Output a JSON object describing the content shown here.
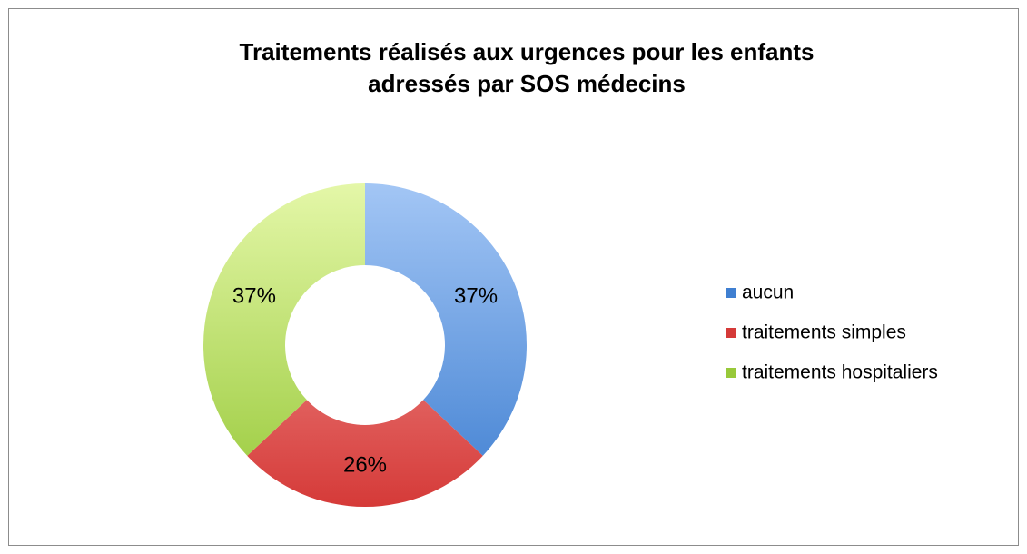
{
  "chart_data": {
    "type": "donut",
    "title": "Traitements réalisés aux urgences pour les enfants adressés par SOS médecins",
    "categories": [
      "aucun",
      "traitements simples",
      "traitements hospitaliers"
    ],
    "values": [
      37,
      26,
      37
    ],
    "value_labels": [
      "37%",
      "26%",
      "37%"
    ],
    "colors": [
      [
        "#a3c6f5",
        "#3f7fd1"
      ],
      [
        "#f8aaa8",
        "#d53a38"
      ],
      [
        "#e4f7a8",
        "#98c93a"
      ]
    ],
    "legend": "right"
  }
}
